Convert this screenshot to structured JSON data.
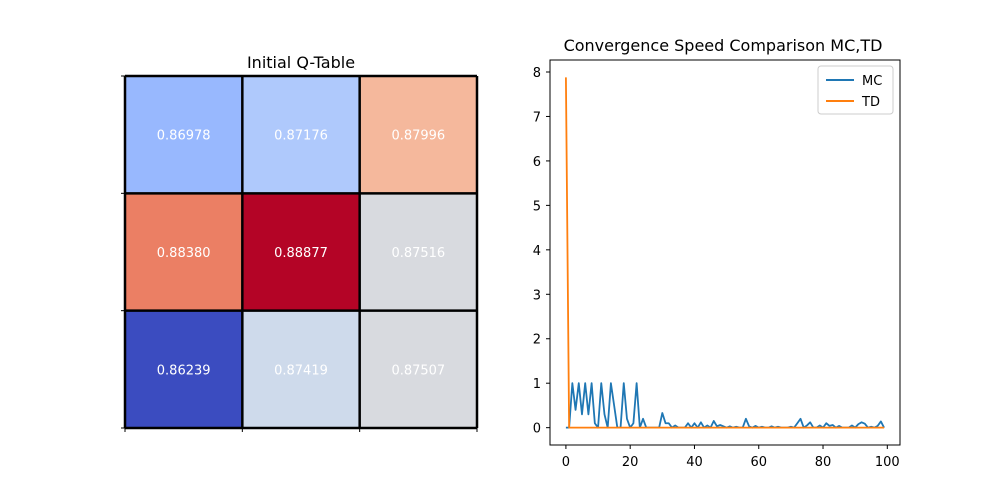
{
  "chart_data": [
    {
      "type": "heatmap",
      "title": "Initial Q-Table",
      "colormap": "coolwarm",
      "rows": [
        [
          0.86978,
          0.87176,
          0.87996
        ],
        [
          0.8838,
          0.88877,
          0.87516
        ],
        [
          0.86239,
          0.87419,
          0.87507
        ]
      ],
      "labels": [
        [
          "0.86978",
          "0.87176",
          "0.87996"
        ],
        [
          "0.88380",
          "0.88877",
          "0.87516"
        ],
        [
          "0.86239",
          "0.87419",
          "0.87507"
        ]
      ],
      "cell_colors": [
        [
          "#98b8fe",
          "#afc9fc",
          "#f5b89c"
        ],
        [
          "#eb7f64",
          "#b40426",
          "#d8dadf"
        ],
        [
          "#3b4cc0",
          "#cedaeb",
          "#d8dadf"
        ]
      ],
      "grid": true
    },
    {
      "type": "line",
      "title": "Convergence Speed Comparison MC,TD",
      "xlim": [
        -4.95,
        103.95
      ],
      "ylim": [
        -0.39,
        8.27
      ],
      "xticks": [
        0,
        20,
        40,
        60,
        80,
        100
      ],
      "yticks": [
        0,
        1,
        2,
        3,
        4,
        5,
        6,
        7,
        8
      ],
      "legend_position": "top-right",
      "series": [
        {
          "name": "MC",
          "color": "#1f77b4",
          "values": [
            0,
            0,
            1,
            0.4,
            1,
            0.3,
            1,
            0.3,
            1,
            0.1,
            0,
            1,
            0.3,
            0,
            1,
            0.5,
            0,
            0,
            1,
            0.2,
            0,
            0.1,
            1,
            0,
            0.2,
            0,
            0,
            0,
            0,
            0,
            0.33,
            0.1,
            0.1,
            0,
            0.05,
            0,
            0,
            0,
            0.1,
            0,
            0.1,
            0,
            0.12,
            0,
            0.05,
            0,
            0.15,
            0.03,
            0.06,
            0.03,
            0,
            0.03,
            0,
            0.02,
            0,
            0,
            0.2,
            0.03,
            0,
            0.04,
            0,
            0.02,
            0,
            0,
            0.03,
            0,
            0.02,
            0,
            0,
            0,
            0.02,
            0,
            0.1,
            0.2,
            0,
            0.05,
            0.12,
            0,
            0,
            0.05,
            0,
            0.1,
            0.04,
            0.06,
            0,
            0.04,
            0,
            0,
            0,
            0.05,
            0,
            0.08,
            0.12,
            0.09,
            0,
            0.02,
            0,
            0.04,
            0.14,
            0
          ]
        },
        {
          "name": "TD",
          "color": "#ff7f0e",
          "values": [
            7.88,
            0,
            0,
            0,
            0,
            0,
            0,
            0,
            0,
            0,
            0,
            0,
            0,
            0,
            0,
            0,
            0,
            0,
            0,
            0,
            0,
            0,
            0,
            0,
            0,
            0,
            0,
            0,
            0,
            0,
            0,
            0,
            0,
            0,
            0,
            0,
            0,
            0,
            0,
            0,
            0,
            0,
            0,
            0,
            0,
            0,
            0,
            0,
            0,
            0,
            0,
            0,
            0,
            0,
            0,
            0,
            0,
            0,
            0,
            0,
            0,
            0,
            0,
            0,
            0,
            0,
            0,
            0,
            0,
            0,
            0,
            0,
            0,
            0,
            0,
            0,
            0,
            0,
            0,
            0,
            0,
            0,
            0,
            0,
            0,
            0,
            0,
            0,
            0,
            0,
            0,
            0,
            0,
            0,
            0,
            0,
            0,
            0,
            0,
            0
          ]
        }
      ]
    }
  ]
}
